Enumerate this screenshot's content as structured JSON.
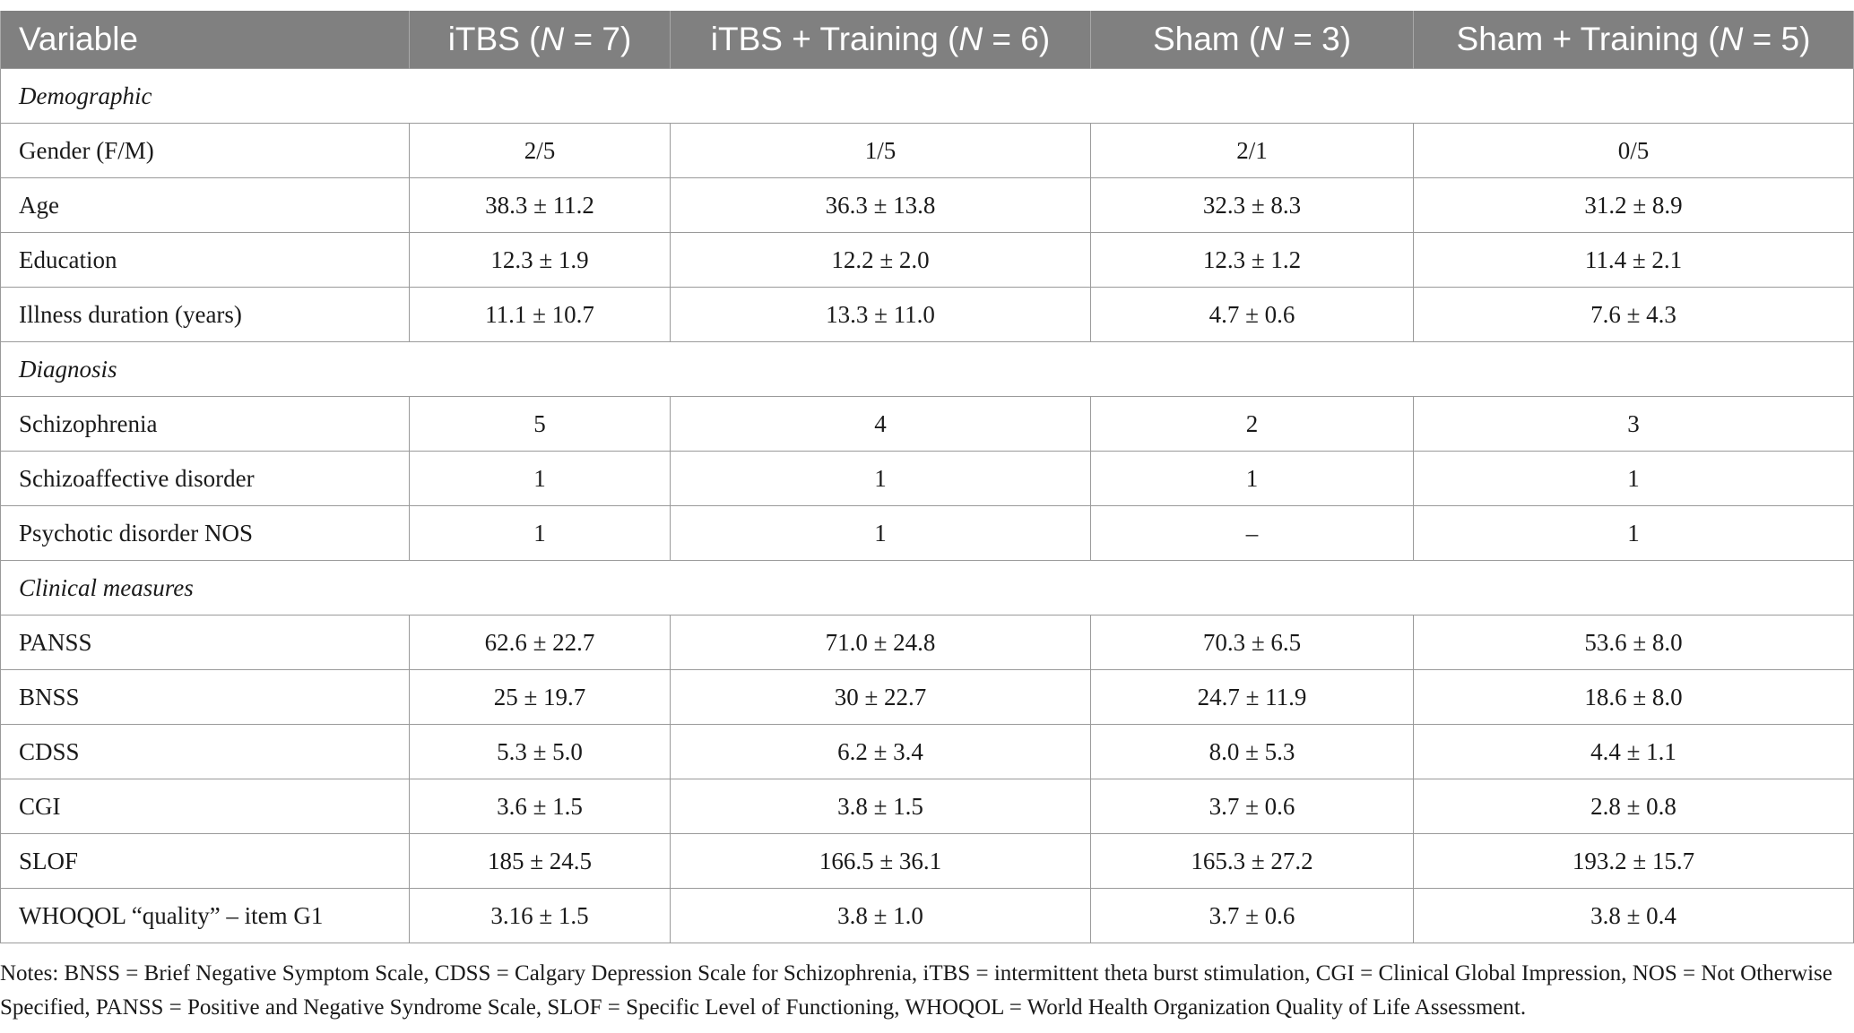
{
  "header": {
    "variable": "Variable",
    "groups": [
      {
        "name": "iTBS",
        "n_label": "N",
        "n_value": "7"
      },
      {
        "name": "iTBS + Training",
        "n_label": "N",
        "n_value": "6"
      },
      {
        "name": "Sham",
        "n_label": "N",
        "n_value": "3"
      },
      {
        "name": "Sham + Training",
        "n_label": "N",
        "n_value": "5"
      }
    ]
  },
  "sections": [
    {
      "title": "Demographic",
      "rows": [
        {
          "label": "Gender (F/M)",
          "values": [
            "2/5",
            "1/5",
            "2/1",
            "0/5"
          ]
        },
        {
          "label": "Age",
          "values": [
            "38.3 ± 11.2",
            "36.3 ± 13.8",
            "32.3 ± 8.3",
            "31.2 ± 8.9"
          ]
        },
        {
          "label": "Education",
          "values": [
            "12.3 ± 1.9",
            "12.2 ± 2.0",
            "12.3 ± 1.2",
            "11.4 ± 2.1"
          ]
        },
        {
          "label": "Illness duration (years)",
          "values": [
            "11.1 ± 10.7",
            "13.3 ± 11.0",
            "4.7 ± 0.6",
            "7.6 ± 4.3"
          ]
        }
      ]
    },
    {
      "title": "Diagnosis",
      "rows": [
        {
          "label": "Schizophrenia",
          "values": [
            "5",
            "4",
            "2",
            "3"
          ]
        },
        {
          "label": "Schizoaffective disorder",
          "values": [
            "1",
            "1",
            "1",
            "1"
          ]
        },
        {
          "label": "Psychotic disorder NOS",
          "values": [
            "1",
            "1",
            "–",
            "1"
          ]
        }
      ]
    },
    {
      "title": "Clinical measures",
      "rows": [
        {
          "label": "PANSS",
          "values": [
            "62.6 ± 22.7",
            "71.0 ± 24.8",
            "70.3 ± 6.5",
            "53.6 ± 8.0"
          ]
        },
        {
          "label": "BNSS",
          "values": [
            "25 ± 19.7",
            "30 ± 22.7",
            "24.7 ± 11.9",
            "18.6 ± 8.0"
          ]
        },
        {
          "label": "CDSS",
          "values": [
            "5.3 ± 5.0",
            "6.2 ± 3.4",
            "8.0 ± 5.3",
            "4.4 ± 1.1"
          ]
        },
        {
          "label": "CGI",
          "values": [
            "3.6 ± 1.5",
            "3.8 ± 1.5",
            "3.7 ± 0.6",
            "2.8 ± 0.8"
          ]
        },
        {
          "label": "SLOF",
          "values": [
            "185 ± 24.5",
            "166.5 ± 36.1",
            "165.3 ± 27.2",
            "193.2 ± 15.7"
          ]
        },
        {
          "label": "WHOQOL “quality” – item G1",
          "values": [
            "3.16 ± 1.5",
            "3.8 ± 1.0",
            "3.7 ± 0.6",
            "3.8 ± 0.4"
          ]
        }
      ]
    }
  ],
  "notes": "Notes: BNSS = Brief Negative Symptom Scale, CDSS = Calgary Depression Scale for Schizophrenia, iTBS = intermittent theta burst stimulation, CGI = Clinical Global Impression, NOS = Not Otherwise Specified, PANSS = Positive and Negative Syndrome Scale, SLOF = Specific Level of Functioning, WHOQOL = World Health Organization Quality of Life Assessment.",
  "colors": {
    "header_bg": "#808080",
    "header_text": "#ffffff",
    "border": "#9a9a9a"
  }
}
